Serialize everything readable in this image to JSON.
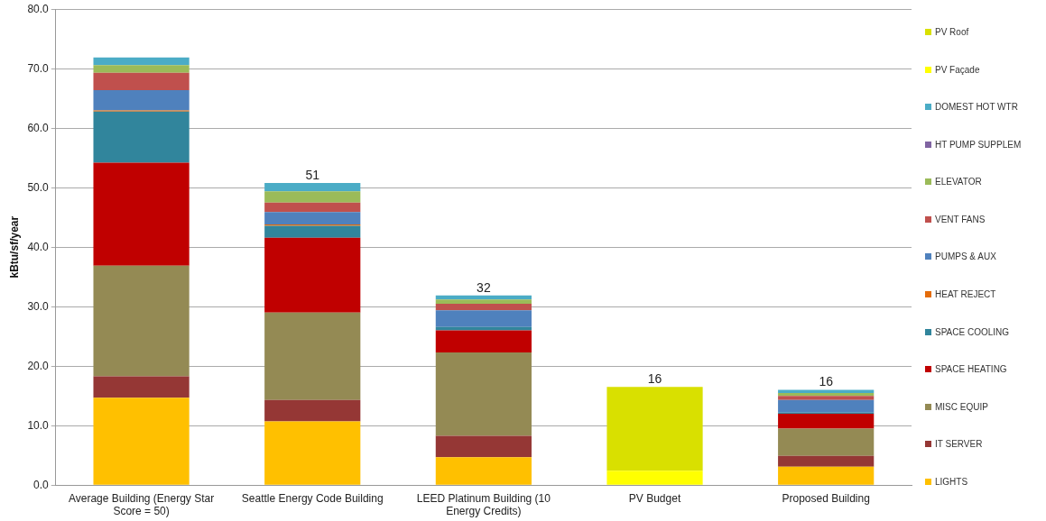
{
  "chart_data": {
    "type": "bar",
    "stacked": true,
    "ylabel": "kBtu/sf/year",
    "categories": [
      "Average Building (Energy Star Score = 50)",
      "Seattle Energy Code Building",
      "LEED Platinum Building (10 Energy Credits)",
      "PV Budget",
      "Proposed Building"
    ],
    "series": [
      {
        "name": "LIGHTS",
        "color": "#ffc000",
        "values": [
          14.7,
          10.7,
          4.7,
          0,
          3.1
        ]
      },
      {
        "name": "IT SERVER",
        "color": "#953735",
        "values": [
          3.6,
          3.6,
          3.6,
          0,
          1.8
        ]
      },
      {
        "name": "MISC EQUIP",
        "color": "#948a54",
        "values": [
          18.6,
          14.7,
          14.0,
          0,
          4.6
        ]
      },
      {
        "name": "SPACE HEATING",
        "color": "#c00000",
        "values": [
          17.3,
          12.6,
          3.7,
          0,
          2.5
        ]
      },
      {
        "name": "SPACE COOLING",
        "color": "#31859c",
        "values": [
          8.6,
          2.0,
          0.6,
          0,
          0.2
        ]
      },
      {
        "name": "HEAT REJECT",
        "color": "#e46c0a",
        "values": [
          0.2,
          0.2,
          0,
          0,
          0
        ]
      },
      {
        "name": "PUMPS & AUX",
        "color": "#4f81bd",
        "values": [
          3.4,
          2.1,
          2.8,
          0,
          2.1
        ]
      },
      {
        "name": "VENT FANS",
        "color": "#c0504d",
        "values": [
          2.9,
          1.6,
          1.1,
          0,
          0.7
        ]
      },
      {
        "name": "ELEVATOR",
        "color": "#9bbb59",
        "values": [
          1.3,
          1.9,
          0.7,
          0,
          0.5
        ]
      },
      {
        "name": "HT PUMP SUPPLEM",
        "color": "#8064a2",
        "values": [
          0,
          0,
          0,
          0,
          0
        ]
      },
      {
        "name": "DOMEST HOT WTR",
        "color": "#4bacc6",
        "values": [
          1.3,
          1.4,
          0.7,
          0,
          0.5
        ]
      },
      {
        "name": "PV Façade",
        "color": "#ffff00",
        "values": [
          0,
          0,
          0,
          2.4,
          0
        ]
      },
      {
        "name": "PV Roof",
        "color": "#d9e000",
        "values": [
          0,
          0,
          0,
          14.1,
          0
        ]
      }
    ],
    "totals": [
      null,
      "51",
      "32",
      "16",
      "16"
    ],
    "ylim": [
      0,
      80
    ],
    "yticks": [
      {
        "value": 0,
        "label": "0.0"
      },
      {
        "value": 10,
        "label": "10.0"
      },
      {
        "value": 20,
        "label": "20.0"
      },
      {
        "value": 30,
        "label": "30.0"
      },
      {
        "value": 40,
        "label": "40.0"
      },
      {
        "value": 50,
        "label": "50.0"
      },
      {
        "value": 60,
        "label": "60.0"
      },
      {
        "value": 70,
        "label": "70.0"
      },
      {
        "value": 80,
        "label": "80.0"
      }
    ],
    "grid": "y",
    "legend": "right"
  }
}
